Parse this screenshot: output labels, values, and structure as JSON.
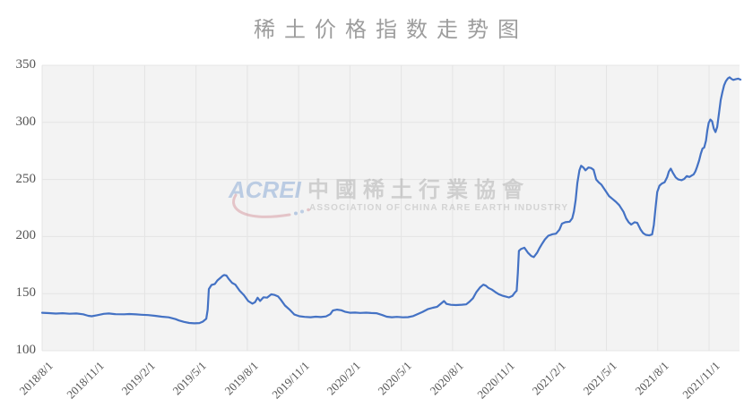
{
  "chart": {
    "title": "稀土价格指数走势图",
    "watermark": {
      "logo_text": "ACREI",
      "cn_text": "中國稀土行業協會",
      "en_text": "ASSOCIATION OF CHINA RARE EARTH INDUSTRY"
    }
  },
  "chart_data": {
    "type": "line",
    "title": "稀土价格指数走势图",
    "series_name": "稀土价格指数",
    "line_color": "#4472c4",
    "plot_bg": "#f3f3f3",
    "grid_color": "#e4e4e4",
    "ylim": [
      100,
      350
    ],
    "y_ticks": [
      100,
      150,
      200,
      250,
      300,
      350
    ],
    "x_tick_labels": [
      "2018/8/1",
      "2018/11/1",
      "2019/2/1",
      "2019/5/1",
      "2019/8/1",
      "2019/11/1",
      "2020/2/1",
      "2020/5/1",
      "2020/8/1",
      "2020/11/1",
      "2021/2/1",
      "2021/5/1",
      "2021/8/1",
      "2021/11/1"
    ],
    "x_tick_interval_months": 3,
    "grid": true,
    "legend": "none",
    "points": [
      [
        0,
        133.2
      ],
      [
        0.4,
        132.9
      ],
      [
        0.8,
        132.5
      ],
      [
        1.2,
        132.8
      ],
      [
        1.6,
        132.4
      ],
      [
        2,
        132.6
      ],
      [
        2.4,
        131.9
      ],
      [
        2.7,
        130.6
      ],
      [
        2.9,
        130.2
      ],
      [
        3.2,
        131
      ],
      [
        3.6,
        132.3
      ],
      [
        3.9,
        132.6
      ],
      [
        4.3,
        132
      ],
      [
        4.8,
        131.9
      ],
      [
        5.1,
        132.1
      ],
      [
        5.5,
        131.8
      ],
      [
        5.8,
        131.5
      ],
      [
        6.2,
        131.2
      ],
      [
        6.6,
        130.6
      ],
      [
        7,
        129.8
      ],
      [
        7.4,
        129.2
      ],
      [
        7.8,
        127.7
      ],
      [
        8,
        126.5
      ],
      [
        8.3,
        125.2
      ],
      [
        8.6,
        124.3
      ],
      [
        8.9,
        124
      ],
      [
        9.2,
        124.2
      ],
      [
        9.4,
        125.5
      ],
      [
        9.6,
        128
      ],
      [
        9.68,
        136
      ],
      [
        9.75,
        154
      ],
      [
        9.9,
        157.5
      ],
      [
        10.1,
        158.5
      ],
      [
        10.25,
        161.5
      ],
      [
        10.4,
        163.5
      ],
      [
        10.55,
        165.5
      ],
      [
        10.65,
        166.3
      ],
      [
        10.78,
        165.8
      ],
      [
        10.9,
        163.2
      ],
      [
        11.1,
        159.5
      ],
      [
        11.3,
        157.8
      ],
      [
        11.55,
        152.6
      ],
      [
        11.8,
        148.7
      ],
      [
        12.05,
        143.5
      ],
      [
        12.3,
        141.2
      ],
      [
        12.45,
        142.5
      ],
      [
        12.6,
        146.4
      ],
      [
        12.75,
        143.6
      ],
      [
        12.95,
        146.8
      ],
      [
        13.15,
        146.5
      ],
      [
        13.4,
        149.4
      ],
      [
        13.6,
        148.8
      ],
      [
        13.8,
        147.5
      ],
      [
        13.95,
        144.8
      ],
      [
        14.2,
        139.6
      ],
      [
        14.5,
        135.6
      ],
      [
        14.75,
        131.7
      ],
      [
        15.05,
        130.2
      ],
      [
        15.35,
        129.6
      ],
      [
        15.7,
        129.3
      ],
      [
        16,
        129.8
      ],
      [
        16.3,
        129.5
      ],
      [
        16.6,
        130
      ],
      [
        16.85,
        132
      ],
      [
        17,
        135.2
      ],
      [
        17.25,
        136
      ],
      [
        17.5,
        135.4
      ],
      [
        17.7,
        134.2
      ],
      [
        18,
        133.2
      ],
      [
        18.3,
        133.4
      ],
      [
        18.6,
        133.1
      ],
      [
        18.95,
        133.3
      ],
      [
        19.25,
        133
      ],
      [
        19.55,
        132.8
      ],
      [
        19.9,
        131.2
      ],
      [
        20.15,
        129.8
      ],
      [
        20.45,
        129.3
      ],
      [
        20.75,
        129.6
      ],
      [
        21.1,
        129.2
      ],
      [
        21.4,
        129.4
      ],
      [
        21.7,
        130.3
      ],
      [
        22,
        132.4
      ],
      [
        22.25,
        134
      ],
      [
        22.55,
        136.4
      ],
      [
        22.85,
        137.6
      ],
      [
        23.1,
        138.5
      ],
      [
        23.35,
        141.5
      ],
      [
        23.5,
        143.5
      ],
      [
        23.65,
        141
      ],
      [
        23.9,
        140.2
      ],
      [
        24.2,
        140
      ],
      [
        24.55,
        140.3
      ],
      [
        24.8,
        140.6
      ],
      [
        25,
        143
      ],
      [
        25.2,
        146
      ],
      [
        25.4,
        151.4
      ],
      [
        25.6,
        155.3
      ],
      [
        25.8,
        157.8
      ],
      [
        25.95,
        157
      ],
      [
        26.1,
        155
      ],
      [
        26.3,
        153.5
      ],
      [
        26.5,
        151.4
      ],
      [
        26.7,
        149.5
      ],
      [
        26.9,
        148.3
      ],
      [
        27.1,
        147.5
      ],
      [
        27.3,
        146.6
      ],
      [
        27.5,
        148
      ],
      [
        27.65,
        151
      ],
      [
        27.75,
        152.5
      ],
      [
        27.82,
        168
      ],
      [
        27.88,
        187.5
      ],
      [
        28,
        189
      ],
      [
        28.2,
        190.2
      ],
      [
        28.4,
        186
      ],
      [
        28.6,
        183
      ],
      [
        28.75,
        182
      ],
      [
        28.95,
        186
      ],
      [
        29.1,
        190.2
      ],
      [
        29.25,
        194
      ],
      [
        29.4,
        197.5
      ],
      [
        29.6,
        200.7
      ],
      [
        29.85,
        202
      ],
      [
        30.05,
        202.5
      ],
      [
        30.25,
        206
      ],
      [
        30.4,
        211.3
      ],
      [
        30.6,
        212.5
      ],
      [
        30.85,
        213
      ],
      [
        31,
        216
      ],
      [
        31.1,
        222
      ],
      [
        31.2,
        232
      ],
      [
        31.3,
        247
      ],
      [
        31.42,
        258
      ],
      [
        31.52,
        262
      ],
      [
        31.65,
        260.5
      ],
      [
        31.77,
        258
      ],
      [
        31.95,
        260.5
      ],
      [
        32.1,
        260
      ],
      [
        32.25,
        258.5
      ],
      [
        32.4,
        250
      ],
      [
        32.55,
        247.5
      ],
      [
        32.7,
        245.5
      ],
      [
        32.95,
        240
      ],
      [
        33.15,
        235.5
      ],
      [
        33.35,
        233
      ],
      [
        33.55,
        230.5
      ],
      [
        33.75,
        227.5
      ],
      [
        34,
        221.6
      ],
      [
        34.15,
        216
      ],
      [
        34.3,
        212.5
      ],
      [
        34.45,
        210.5
      ],
      [
        34.65,
        212.5
      ],
      [
        34.8,
        212
      ],
      [
        35,
        206
      ],
      [
        35.15,
        203
      ],
      [
        35.3,
        201.5
      ],
      [
        35.5,
        201
      ],
      [
        35.67,
        201.8
      ],
      [
        35.77,
        210
      ],
      [
        35.87,
        225
      ],
      [
        35.97,
        239
      ],
      [
        36.1,
        244.5
      ],
      [
        36.25,
        246.5
      ],
      [
        36.4,
        247.5
      ],
      [
        36.55,
        252
      ],
      [
        36.65,
        257
      ],
      [
        36.76,
        259.5
      ],
      [
        36.9,
        255.5
      ],
      [
        37.05,
        251.8
      ],
      [
        37.2,
        250
      ],
      [
        37.4,
        249.4
      ],
      [
        37.55,
        250.5
      ],
      [
        37.7,
        253
      ],
      [
        37.85,
        252.2
      ],
      [
        38,
        253.5
      ],
      [
        38.1,
        254.5
      ],
      [
        38.2,
        257
      ],
      [
        38.3,
        261
      ],
      [
        38.42,
        266.5
      ],
      [
        38.52,
        272.5
      ],
      [
        38.62,
        277
      ],
      [
        38.72,
        278
      ],
      [
        38.82,
        284
      ],
      [
        38.9,
        293
      ],
      [
        38.98,
        299.5
      ],
      [
        39.08,
        302.5
      ],
      [
        39.18,
        301
      ],
      [
        39.28,
        294.5
      ],
      [
        39.38,
        291.5
      ],
      [
        39.48,
        296
      ],
      [
        39.58,
        308
      ],
      [
        39.68,
        319.5
      ],
      [
        39.78,
        326.5
      ],
      [
        39.88,
        332.5
      ],
      [
        39.98,
        336
      ],
      [
        40.1,
        338.5
      ],
      [
        40.2,
        339.5
      ],
      [
        40.32,
        338
      ],
      [
        40.42,
        337.2
      ],
      [
        40.55,
        337.8
      ],
      [
        40.7,
        338.3
      ],
      [
        40.84,
        337.5
      ]
    ]
  }
}
